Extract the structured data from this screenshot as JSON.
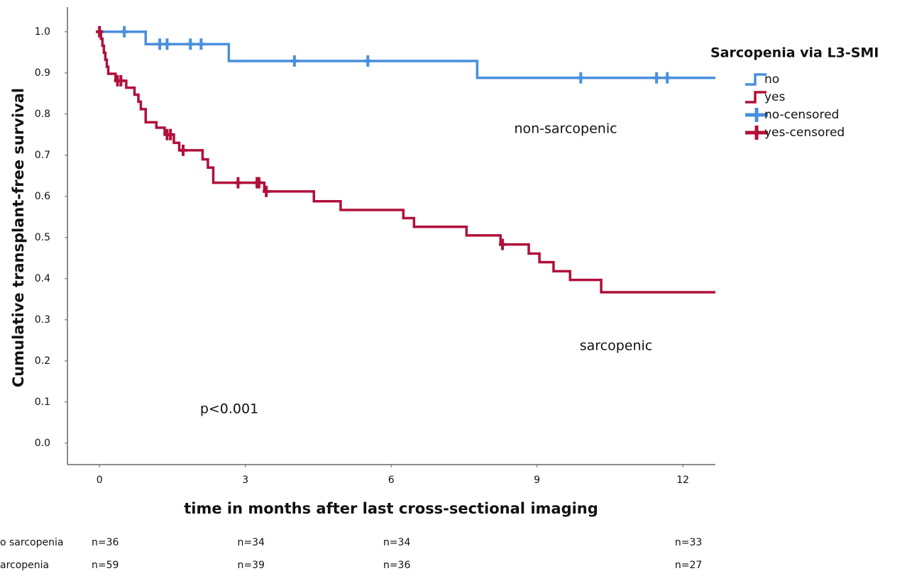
{
  "chart_data": {
    "type": "survival",
    "xlabel": "time in months after last cross-sectional imaging",
    "ylabel": "Cumulative transplant-free survival",
    "legend_title": "Sarcopenia via L3-SMI",
    "legend": "right",
    "grid": false,
    "xlim": [
      -0.66,
      12.67
    ],
    "ylim": [
      -0.052,
      1.06
    ],
    "xticks": [
      0,
      3,
      6,
      9,
      12
    ],
    "yticks": [
      {
        "value": 0,
        "label": "0.0"
      },
      0.1,
      0.2,
      0.3,
      0.4,
      0.5,
      0.6,
      0.7,
      0.8,
      0.9,
      {
        "value": 1,
        "label": "1.0"
      }
    ],
    "series": [
      {
        "name": "no",
        "kind": "step",
        "color": "#4a8fdc",
        "x": [
          0,
          0.95,
          2.66,
          7.77
        ],
        "values": [
          1.0,
          0.97,
          0.929,
          0.888
        ]
      },
      {
        "name": "yes",
        "kind": "step",
        "color": "#b0103a",
        "x": [
          0,
          0.03,
          0.06,
          0.09,
          0.12,
          0.15,
          0.18,
          0.33,
          0.55,
          0.72,
          0.8,
          0.85,
          0.95,
          1.17,
          1.34,
          1.53,
          1.64,
          2.12,
          2.23,
          2.34,
          3.39,
          4.41,
          4.96,
          6.25,
          6.47,
          7.55,
          8.25,
          8.83,
          9.05,
          9.34,
          9.68,
          10.32
        ],
        "values": [
          1.0,
          0.983,
          0.966,
          0.949,
          0.932,
          0.915,
          0.898,
          0.881,
          0.864,
          0.847,
          0.83,
          0.812,
          0.78,
          0.767,
          0.75,
          0.73,
          0.712,
          0.69,
          0.67,
          0.633,
          0.612,
          0.588,
          0.567,
          0.547,
          0.526,
          0.505,
          0.483,
          0.461,
          0.44,
          0.418,
          0.397,
          0.367
        ]
      },
      {
        "name": "no-censored",
        "kind": "censor",
        "color": "#4a8fdc",
        "x": [
          0,
          0.51,
          1.24,
          1.39,
          1.87,
          2.09,
          4.01,
          5.52,
          9.9,
          11.46,
          11.68
        ],
        "values": [
          1.0,
          1.0,
          0.97,
          0.97,
          0.97,
          0.97,
          0.929,
          0.929,
          0.888,
          0.888,
          0.888
        ]
      },
      {
        "name": "yes-censored",
        "kind": "censor",
        "color": "#b0103a",
        "x": [
          0,
          0.37,
          0.44,
          1.39,
          1.46,
          1.72,
          2.85,
          3.24,
          3.28,
          3.43,
          8.29
        ],
        "values": [
          1.0,
          0.881,
          0.881,
          0.75,
          0.75,
          0.712,
          0.633,
          0.633,
          0.633,
          0.612,
          0.483
        ]
      }
    ],
    "annotations": [
      "non-sarcopenic",
      "sarcopenic",
      "p<0.001"
    ],
    "risk_table": [
      {
        "label": "o sarcopenia",
        "counts": [
          "n=36",
          "n=34",
          "n=34",
          "n=33"
        ]
      },
      {
        "label": "arcopenia",
        "counts": [
          "n=59",
          "n=39",
          "n=36",
          "n=27"
        ]
      }
    ]
  }
}
